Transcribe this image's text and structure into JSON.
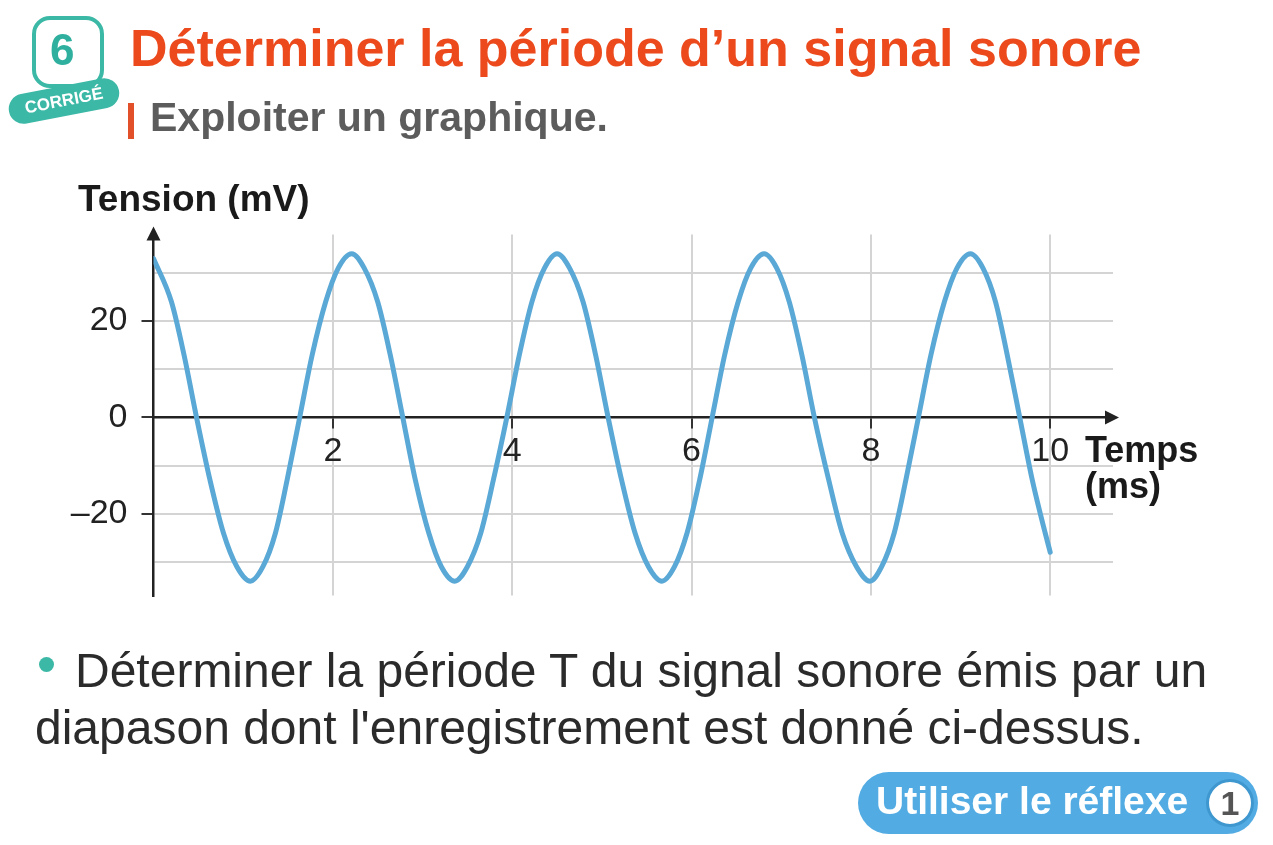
{
  "chart_data": {
    "type": "line",
    "title": "Déterminer la période d’un signal sonore",
    "subtitle": "Exploiter un graphique.",
    "xlabel": "Temps (ms)",
    "ylabel": "Tension (mV)",
    "x": [
      0,
      0.2,
      0.34,
      0.48,
      0.63,
      0.78,
      0.93,
      1.08,
      1.22,
      1.36,
      1.49,
      1.63,
      1.77,
      1.92,
      2.06,
      2.21,
      2.35,
      2.5,
      2.64,
      2.78,
      2.92,
      3.07,
      3.21,
      3.36,
      3.5,
      3.65,
      3.79,
      3.94,
      4.08,
      4.22,
      4.36,
      4.5,
      4.64,
      4.79,
      4.93,
      5.07,
      5.22,
      5.37,
      5.52,
      5.67,
      5.81,
      5.95,
      6.09,
      6.23,
      6.37,
      6.52,
      6.66,
      6.81,
      6.95,
      7.09,
      7.23,
      7.37,
      7.53,
      7.68,
      7.84,
      7.99,
      8.12,
      8.26,
      8.39,
      8.53,
      8.67,
      8.82,
      8.96,
      9.11,
      9.25,
      9.39,
      9.52,
      9.66,
      9.8,
      9.93,
      10
    ],
    "values": [
      33,
      24,
      13,
      0,
      -13,
      -24,
      -31,
      -34,
      -31,
      -24,
      -13,
      0,
      13,
      24,
      31,
      34,
      31,
      24,
      13,
      0,
      -13,
      -24,
      -31,
      -34,
      -31,
      -24,
      -13,
      0,
      13,
      24,
      31,
      34,
      31,
      24,
      13,
      0,
      -13,
      -24,
      -31,
      -34,
      -31,
      -24,
      -13,
      0,
      13,
      24,
      31,
      34,
      31,
      24,
      13,
      0,
      -13,
      -24,
      -31,
      -34,
      -31,
      -24,
      -13,
      0,
      13,
      24,
      31,
      34,
      31,
      24,
      13,
      0,
      -13,
      -23,
      -28
    ],
    "color": "#5aa8d6",
    "marker": "none",
    "xlim": [
      0,
      10.7
    ],
    "xticks": [
      2,
      4,
      6,
      8,
      10
    ],
    "ylim": [
      -37,
      38
    ],
    "yticks": [
      {
        "value": -30,
        "label": null
      },
      {
        "value": -20,
        "label": "–20"
      },
      {
        "value": -10,
        "label": null
      },
      0,
      {
        "value": 10,
        "label": null
      },
      20,
      {
        "value": 30,
        "label": null
      }
    ],
    "grid": true,
    "annotations": [
      "6",
      "CORRIGÉ",
      "Déterminer la période T du signal sonore émis par un diapason dont l'enregistrement est donné ci-dessus.",
      "Utiliser le réflexe",
      "1"
    ]
  }
}
